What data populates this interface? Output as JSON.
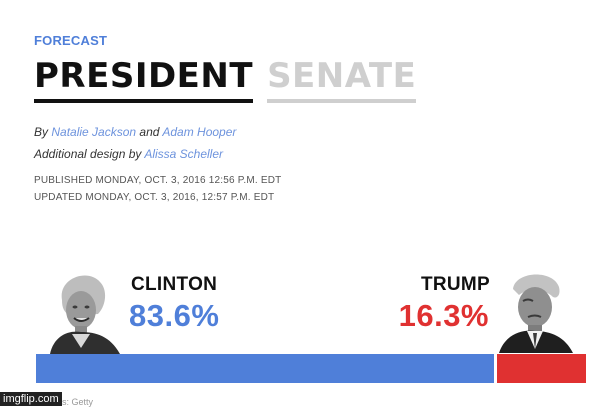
{
  "header": {
    "section_label": "FORECAST",
    "tabs": [
      {
        "label": "PRESIDENT",
        "active": true
      },
      {
        "label": "SENATE",
        "active": false
      }
    ]
  },
  "byline": {
    "prefix": "By",
    "author1": "Natalie Jackson",
    "joiner": "and",
    "author2": "Adam Hooper",
    "design_prefix": "Additional design by",
    "designer": "Alissa Scheller"
  },
  "dates": {
    "published": "PUBLISHED MONDAY, OCT. 3, 2016 12:56 P.M. EDT",
    "updated": "UPDATED MONDAY, OCT. 3, 2016, 12:57 P.M. EDT"
  },
  "candidates": {
    "left": {
      "name": "CLINTON",
      "percent_text": "83.6%",
      "share": 83.6,
      "color": "#4f7fd9"
    },
    "right": {
      "name": "TRUMP",
      "percent_text": "16.3%",
      "share": 16.3,
      "color": "#e03131"
    }
  },
  "footer": {
    "photo_credit": "s: Getty",
    "watermark": "imgflip.com"
  }
}
